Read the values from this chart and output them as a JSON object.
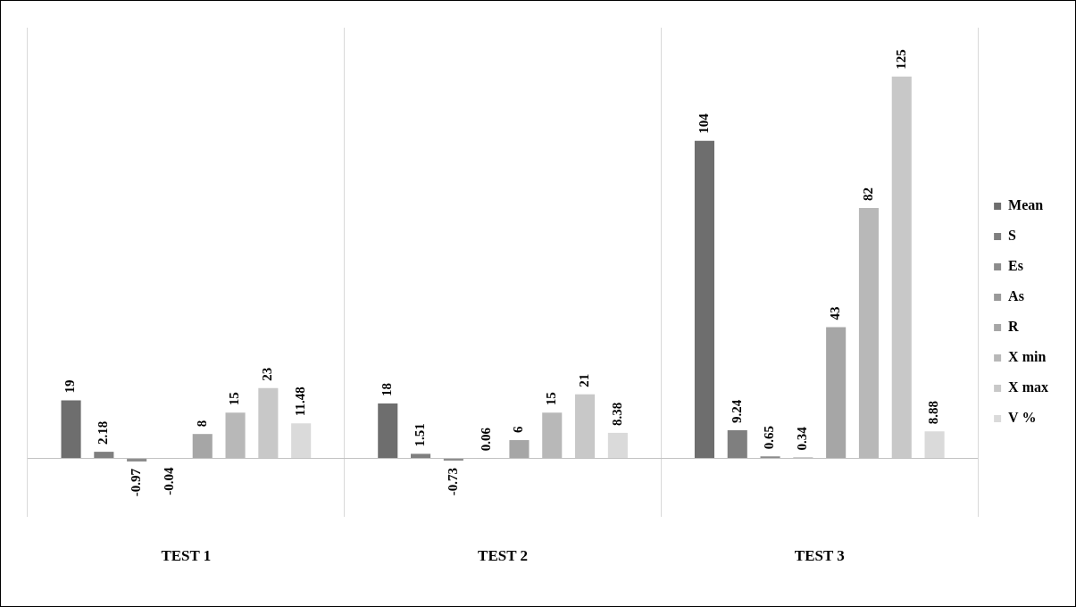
{
  "chart_data": {
    "type": "bar",
    "categories": [
      "TEST 1",
      "TEST 2",
      "TEST 3"
    ],
    "series": [
      {
        "name": "Mean",
        "color": "#6e6e6e",
        "values": [
          19,
          18,
          104
        ]
      },
      {
        "name": "S",
        "color": "#7f7f7f",
        "values": [
          2.18,
          1.51,
          9.24
        ]
      },
      {
        "name": "Es",
        "color": "#8c8c8c",
        "values": [
          -0.97,
          -0.73,
          0.65
        ]
      },
      {
        "name": "As",
        "color": "#999999",
        "values": [
          -0.04,
          0.06,
          0.34
        ]
      },
      {
        "name": "R",
        "color": "#a6a6a6",
        "values": [
          8,
          6,
          43
        ]
      },
      {
        "name": "X min",
        "color": "#b8b8b8",
        "values": [
          15,
          15,
          82
        ]
      },
      {
        "name": "X max",
        "color": "#c8c8c8",
        "values": [
          23,
          21,
          125
        ]
      },
      {
        "name": "V %",
        "color": "#dadada",
        "values": [
          11.48,
          8.38,
          8.88
        ]
      }
    ],
    "ylim": [
      -19,
      141
    ],
    "data_labels": true,
    "grid": "x",
    "legend": "right",
    "tick_labels": "x"
  }
}
